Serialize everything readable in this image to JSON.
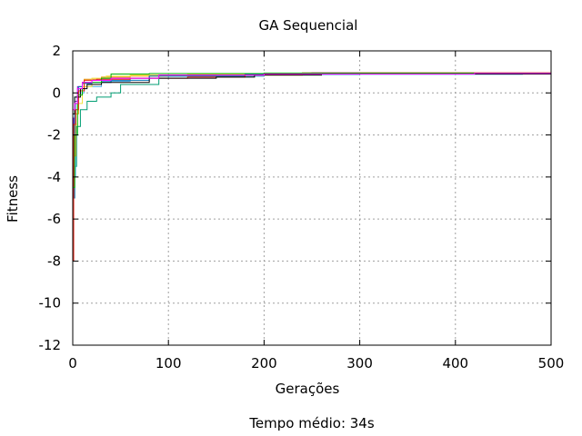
{
  "chart_data": {
    "type": "line",
    "title": "GA Sequencial",
    "xlabel": "Gerações",
    "ylabel": "Fitness",
    "footer": "Tempo médio: 34s",
    "xlim": [
      0,
      500
    ],
    "ylim": [
      -12,
      2
    ],
    "xticks": [
      0,
      100,
      200,
      300,
      400,
      500
    ],
    "yticks": [
      -12,
      -10,
      -8,
      -6,
      -4,
      -2,
      0,
      2
    ],
    "grid": true,
    "legend": "none",
    "series": [
      {
        "color": "#9400d3",
        "points": [
          [
            0,
            -5.0
          ],
          [
            1,
            -1.2
          ],
          [
            2,
            -0.4
          ],
          [
            5,
            0.3
          ],
          [
            10,
            0.5
          ],
          [
            20,
            0.6
          ],
          [
            40,
            0.7
          ],
          [
            80,
            0.85
          ],
          [
            150,
            0.9
          ],
          [
            250,
            0.95
          ],
          [
            500,
            0.96
          ]
        ]
      },
      {
        "color": "#009e73",
        "points": [
          [
            0,
            -5.0
          ],
          [
            2,
            -3.5
          ],
          [
            4,
            -1.6
          ],
          [
            8,
            -0.8
          ],
          [
            15,
            -0.4
          ],
          [
            25,
            -0.2
          ],
          [
            40,
            0.0
          ],
          [
            50,
            0.4
          ],
          [
            90,
            0.8
          ],
          [
            200,
            0.9
          ],
          [
            340,
            0.94
          ],
          [
            500,
            0.96
          ]
        ]
      },
      {
        "color": "#56b4e9",
        "points": [
          [
            0,
            -4.0
          ],
          [
            3,
            -0.5
          ],
          [
            6,
            0.0
          ],
          [
            12,
            0.3
          ],
          [
            30,
            0.55
          ],
          [
            60,
            0.7
          ],
          [
            100,
            0.8
          ],
          [
            200,
            0.88
          ],
          [
            470,
            0.92
          ],
          [
            500,
            0.97
          ]
        ]
      },
      {
        "color": "#e69f00",
        "points": [
          [
            0,
            -3.0
          ],
          [
            3,
            -1.0
          ],
          [
            6,
            0.1
          ],
          [
            12,
            0.65
          ],
          [
            30,
            0.75
          ],
          [
            60,
            0.8
          ],
          [
            100,
            0.85
          ],
          [
            180,
            0.88
          ],
          [
            260,
            0.9
          ],
          [
            500,
            0.95
          ]
        ]
      },
      {
        "color": "#f0e442",
        "points": [
          [
            0,
            -1.5
          ],
          [
            5,
            -0.5
          ],
          [
            10,
            0.3
          ],
          [
            20,
            0.7
          ],
          [
            35,
            0.8
          ],
          [
            60,
            0.85
          ],
          [
            120,
            0.9
          ],
          [
            300,
            0.95
          ],
          [
            500,
            0.97
          ]
        ]
      },
      {
        "color": "#0072b2",
        "points": [
          [
            0,
            -5.0
          ],
          [
            2,
            -0.2
          ],
          [
            6,
            0.3
          ],
          [
            10,
            0.45
          ],
          [
            20,
            0.5
          ],
          [
            40,
            0.6
          ],
          [
            80,
            0.8
          ],
          [
            180,
            0.88
          ],
          [
            300,
            0.92
          ],
          [
            500,
            0.97
          ]
        ]
      },
      {
        "color": "#e51e10",
        "points": [
          [
            0,
            -8.0
          ],
          [
            1,
            -1.5
          ],
          [
            3,
            -0.8
          ],
          [
            6,
            0.1
          ],
          [
            12,
            0.6
          ],
          [
            25,
            0.65
          ],
          [
            60,
            0.7
          ],
          [
            120,
            0.75
          ],
          [
            180,
            0.85
          ],
          [
            240,
            0.95
          ],
          [
            500,
            0.96
          ]
        ]
      },
      {
        "color": "#000000",
        "points": [
          [
            0,
            -1.0
          ],
          [
            2,
            -0.2
          ],
          [
            8,
            0.2
          ],
          [
            15,
            0.4
          ],
          [
            30,
            0.5
          ],
          [
            80,
            0.7
          ],
          [
            150,
            0.75
          ],
          [
            190,
            0.85
          ],
          [
            260,
            0.9
          ],
          [
            500,
            0.95
          ]
        ]
      },
      {
        "color": "#00b000",
        "points": [
          [
            0,
            -4.5
          ],
          [
            2,
            -2.0
          ],
          [
            5,
            -0.1
          ],
          [
            10,
            0.5
          ],
          [
            30,
            0.7
          ],
          [
            40,
            0.9
          ],
          [
            80,
            0.92
          ],
          [
            200,
            0.94
          ],
          [
            500,
            0.96
          ]
        ]
      },
      {
        "color": "#ff00ff",
        "points": [
          [
            0,
            -0.8
          ],
          [
            2,
            -0.5
          ],
          [
            5,
            0.2
          ],
          [
            10,
            0.5
          ],
          [
            20,
            0.6
          ],
          [
            40,
            0.7
          ],
          [
            90,
            0.85
          ],
          [
            200,
            0.9
          ],
          [
            420,
            0.93
          ],
          [
            500,
            0.96
          ]
        ]
      }
    ]
  }
}
